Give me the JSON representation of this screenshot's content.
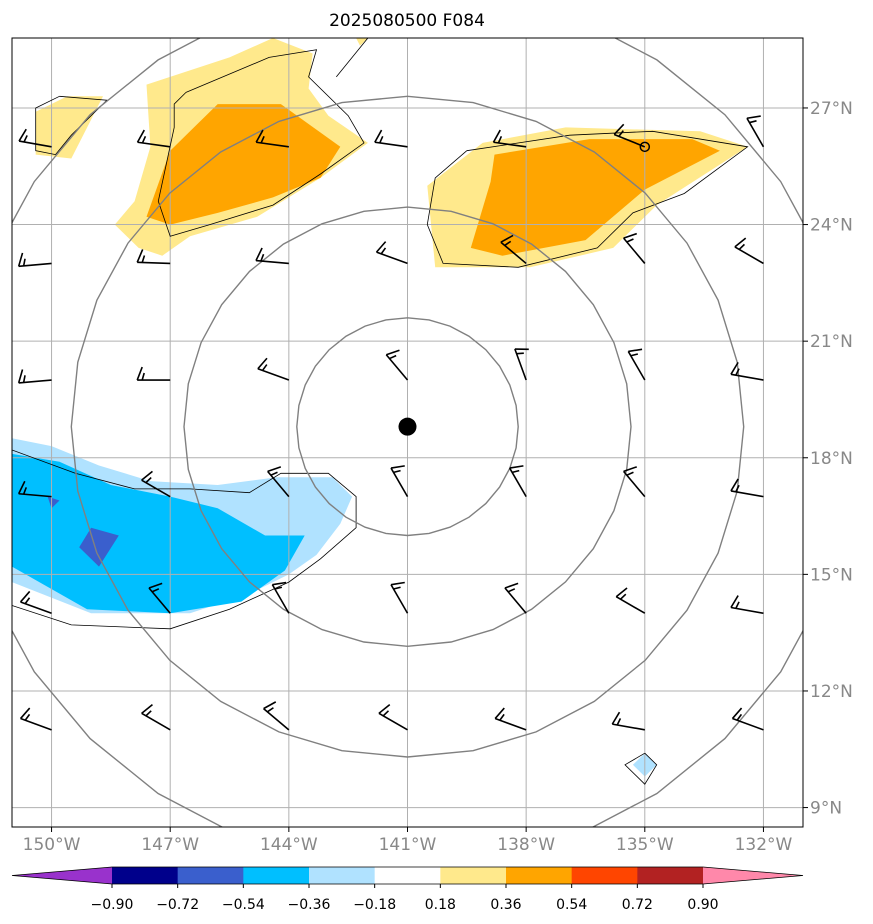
{
  "chart_data": {
    "type": "map",
    "title": "2025080500 F084",
    "projection": "lat-lon",
    "xlim": [
      -151,
      -131
    ],
    "ylim": [
      8.5,
      28.8
    ],
    "x_ticks": [
      -150,
      -147,
      -144,
      -141,
      -138,
      -135,
      -132
    ],
    "x_tick_labels": [
      "150°W",
      "147°W",
      "144°W",
      "141°W",
      "138°W",
      "135°W",
      "132°W"
    ],
    "y_ticks": [
      9,
      12,
      15,
      18,
      21,
      24,
      27
    ],
    "y_tick_labels": [
      "9°N",
      "12°N",
      "15°N",
      "18°N",
      "21°N",
      "24°N",
      "27°N"
    ],
    "grid": true,
    "center": {
      "lon": -141,
      "lat": 18.8
    },
    "range_rings_deg": [
      2.8,
      5.65,
      8.5,
      11.35
    ],
    "small_circle": {
      "lon": -135,
      "lat": 26.0
    },
    "colorbar": {
      "orientation": "horizontal",
      "location": "bottom",
      "extend": "both",
      "boundaries": [
        -0.9,
        -0.72,
        -0.54,
        -0.36,
        -0.18,
        0.18,
        0.36,
        0.54,
        0.72,
        0.9
      ],
      "tick_labels": [
        "−0.90",
        "−0.72",
        "−0.54",
        "−0.36",
        "−0.18",
        "0.18",
        "0.36",
        "0.54",
        "0.72",
        "0.90"
      ],
      "colors": [
        "#9932cc",
        "#00008b",
        "#3a5fcd",
        "#00bfff",
        "#b0e2ff",
        "#ffffff",
        "#ffe98c",
        "#ffa500",
        "#ff4500",
        "#b22222",
        "#ff88aa"
      ]
    },
    "filled_regions": [
      {
        "level": 0.18,
        "color": "#ffe98c",
        "points": [
          [
            -149.6,
            27.3
          ],
          [
            -148.7,
            27.3
          ],
          [
            -149.5,
            25.7
          ],
          [
            -150.4,
            25.8
          ],
          [
            -150.4,
            26.9
          ]
        ]
      },
      {
        "level": 0.18,
        "color": "#ffe98c",
        "points": [
          [
            -142.2,
            28.6
          ],
          [
            -142.0,
            28.8
          ],
          [
            -142.3,
            28.8
          ]
        ]
      },
      {
        "level": 0.18,
        "color": "#ffe98c",
        "points": [
          [
            -145.5,
            28.3
          ],
          [
            -144.4,
            28.8
          ],
          [
            -143.4,
            28.4
          ],
          [
            -143.5,
            27.5
          ],
          [
            -143.0,
            26.8
          ],
          [
            -142.0,
            26.1
          ],
          [
            -143.2,
            25.2
          ],
          [
            -144.8,
            24.2
          ],
          [
            -146.5,
            23.7
          ],
          [
            -147.2,
            23.2
          ],
          [
            -147.8,
            23.4
          ],
          [
            -148.4,
            24.0
          ],
          [
            -147.9,
            24.6
          ],
          [
            -147.5,
            26.0
          ],
          [
            -147.6,
            27.6
          ]
        ]
      },
      {
        "level": 0.18,
        "color": "#ffe98c",
        "points": [
          [
            -139.1,
            26.1
          ],
          [
            -137.0,
            26.5
          ],
          [
            -133.6,
            26.4
          ],
          [
            -132.4,
            26.0
          ],
          [
            -134.7,
            24.5
          ],
          [
            -135.8,
            23.4
          ],
          [
            -137.9,
            22.9
          ],
          [
            -140.3,
            22.9
          ],
          [
            -140.5,
            25.0
          ]
        ]
      },
      {
        "level": 0.36,
        "color": "#ffa500",
        "points": [
          [
            -145.8,
            27.1
          ],
          [
            -144.2,
            27.1
          ],
          [
            -142.7,
            26.0
          ],
          [
            -143.2,
            25.2
          ],
          [
            -144.4,
            24.7
          ],
          [
            -145.8,
            24.3
          ],
          [
            -147.0,
            24.0
          ],
          [
            -147.6,
            24.2
          ],
          [
            -147.0,
            25.9
          ]
        ]
      },
      {
        "level": 0.36,
        "color": "#ffa500",
        "points": [
          [
            -138.8,
            25.8
          ],
          [
            -136.4,
            26.2
          ],
          [
            -133.8,
            26.2
          ],
          [
            -133.1,
            25.9
          ],
          [
            -135.0,
            24.9
          ],
          [
            -136.5,
            23.6
          ],
          [
            -138.6,
            23.2
          ],
          [
            -139.4,
            23.4
          ],
          [
            -138.9,
            25.1
          ]
        ]
      },
      {
        "level": -0.18,
        "color": "#b0e2ff",
        "points": [
          [
            -151.0,
            18.5
          ],
          [
            -150.0,
            18.3
          ],
          [
            -148.8,
            17.8
          ],
          [
            -147.5,
            17.4
          ],
          [
            -145.8,
            17.3
          ],
          [
            -144.3,
            17.5
          ],
          [
            -142.9,
            17.5
          ],
          [
            -142.4,
            17.0
          ],
          [
            -142.7,
            16.3
          ],
          [
            -143.3,
            15.5
          ],
          [
            -144.0,
            15.0
          ],
          [
            -145.0,
            14.5
          ],
          [
            -146.5,
            14.0
          ],
          [
            -149.0,
            14.0
          ],
          [
            -151.0,
            14.8
          ]
        ]
      },
      {
        "level": -0.36,
        "color": "#00bfff",
        "points": [
          [
            -151.0,
            18.1
          ],
          [
            -149.8,
            17.9
          ],
          [
            -148.5,
            17.3
          ],
          [
            -147.0,
            17.0
          ],
          [
            -145.8,
            16.7
          ],
          [
            -144.6,
            16.0
          ],
          [
            -143.6,
            16.0
          ],
          [
            -144.1,
            15.1
          ],
          [
            -145.2,
            14.3
          ],
          [
            -147.0,
            14.0
          ],
          [
            -149.1,
            14.1
          ],
          [
            -151.0,
            15.2
          ]
        ]
      },
      {
        "level": -0.54,
        "color": "#3a5fcd",
        "points": [
          [
            -149.0,
            16.2
          ],
          [
            -148.3,
            16.0
          ],
          [
            -148.8,
            15.2
          ],
          [
            -149.3,
            15.7
          ]
        ]
      },
      {
        "level": -0.54,
        "color": "#3a5fcd",
        "points": [
          [
            -150.1,
            17.0
          ],
          [
            -149.8,
            16.9
          ],
          [
            -150.0,
            16.7
          ]
        ]
      },
      {
        "level": -0.18,
        "color": "#b0e2ff",
        "points": [
          [
            -135.0,
            10.4
          ],
          [
            -134.7,
            10.1
          ],
          [
            -135.0,
            9.8
          ],
          [
            -135.3,
            10.1
          ]
        ]
      }
    ],
    "contour_lines": [
      [
        [
          -149.8,
          27.3
        ],
        [
          -148.6,
          27.2
        ],
        [
          -149.5,
          26.3
        ],
        [
          -149.9,
          25.8
        ],
        [
          -150.4,
          25.9
        ],
        [
          -150.4,
          27.0
        ],
        [
          -149.8,
          27.3
        ]
      ],
      [
        [
          -146.6,
          27.4
        ],
        [
          -144.5,
          28.3
        ],
        [
          -143.3,
          28.5
        ],
        [
          -143.5,
          27.8
        ],
        [
          -142.5,
          26.8
        ],
        [
          -142.1,
          26.1
        ],
        [
          -143.2,
          25.3
        ],
        [
          -144.4,
          24.5
        ],
        [
          -146.0,
          24.0
        ],
        [
          -147.0,
          23.7
        ],
        [
          -147.3,
          24.6
        ],
        [
          -146.9,
          26.5
        ],
        [
          -146.9,
          27.1
        ],
        [
          -146.6,
          27.4
        ]
      ],
      [
        [
          -142.8,
          27.8
        ],
        [
          -142.0,
          28.8
        ]
      ],
      [
        [
          -139.5,
          25.9
        ],
        [
          -136.9,
          26.3
        ],
        [
          -134.8,
          26.4
        ],
        [
          -132.4,
          26.0
        ],
        [
          -134.0,
          24.8
        ],
        [
          -135.3,
          24.3
        ],
        [
          -136.2,
          23.4
        ],
        [
          -138.2,
          22.9
        ],
        [
          -140.1,
          23.0
        ],
        [
          -140.5,
          24.0
        ],
        [
          -140.3,
          25.2
        ],
        [
          -139.5,
          25.9
        ]
      ],
      [
        [
          -151.0,
          18.2
        ],
        [
          -149.4,
          17.6
        ],
        [
          -147.9,
          17.2
        ],
        [
          -146.5,
          17.2
        ],
        [
          -145.0,
          17.1
        ],
        [
          -144.2,
          17.6
        ],
        [
          -143.0,
          17.6
        ],
        [
          -142.3,
          17.0
        ],
        [
          -142.3,
          16.2
        ],
        [
          -143.2,
          15.4
        ],
        [
          -144.0,
          14.8
        ],
        [
          -145.5,
          14.1
        ],
        [
          -147.0,
          13.6
        ],
        [
          -149.5,
          13.7
        ],
        [
          -151.0,
          14.2
        ]
      ],
      [
        [
          -135.0,
          10.4
        ],
        [
          -134.7,
          10.1
        ],
        [
          -135.0,
          9.6
        ],
        [
          -135.5,
          10.1
        ],
        [
          -135.0,
          10.4
        ]
      ]
    ],
    "wind_barbs": {
      "lons": [
        -150,
        -147,
        -144,
        -141,
        -138,
        -135,
        -132
      ],
      "lats": [
        26.0,
        23.0,
        20.0,
        17.0,
        14.0,
        11.0
      ],
      "directions_deg": [
        [
          280,
          278,
          278,
          278,
          278,
          292,
          330
        ],
        [
          265,
          272,
          275,
          290,
          310,
          320,
          300
        ],
        [
          265,
          270,
          290,
          320,
          340,
          330,
          280
        ],
        [
          275,
          300,
          320,
          330,
          330,
          320,
          280
        ],
        [
          290,
          320,
          330,
          330,
          320,
          300,
          280
        ],
        [
          290,
          300,
          310,
          300,
          290,
          280,
          290
        ]
      ]
    }
  }
}
